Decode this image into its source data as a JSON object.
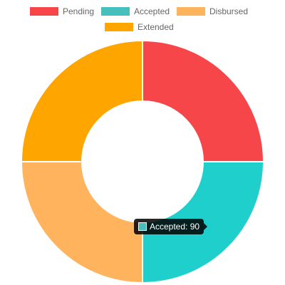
{
  "chart_data": {
    "type": "doughnut",
    "title": "",
    "legend_position": "top",
    "categories": [
      "Pending",
      "Accepted",
      "Disbursed",
      "Extended"
    ],
    "series": [
      {
        "values": [
          90,
          90,
          90,
          90
        ],
        "colors": [
          "#f7464a",
          "#1ecfcb",
          "#ffb35c",
          "#ffa500"
        ]
      }
    ]
  },
  "legend": [
    {
      "label": "Pending",
      "color": "#f7464a"
    },
    {
      "label": "Accepted",
      "color": "#46bfbd"
    },
    {
      "label": "Disbursed",
      "color": "#fdb45c"
    },
    {
      "label": "Extended",
      "color": "#ffa500"
    }
  ],
  "tooltip": {
    "text": "Accepted: 90",
    "color": "#46bfbd"
  }
}
